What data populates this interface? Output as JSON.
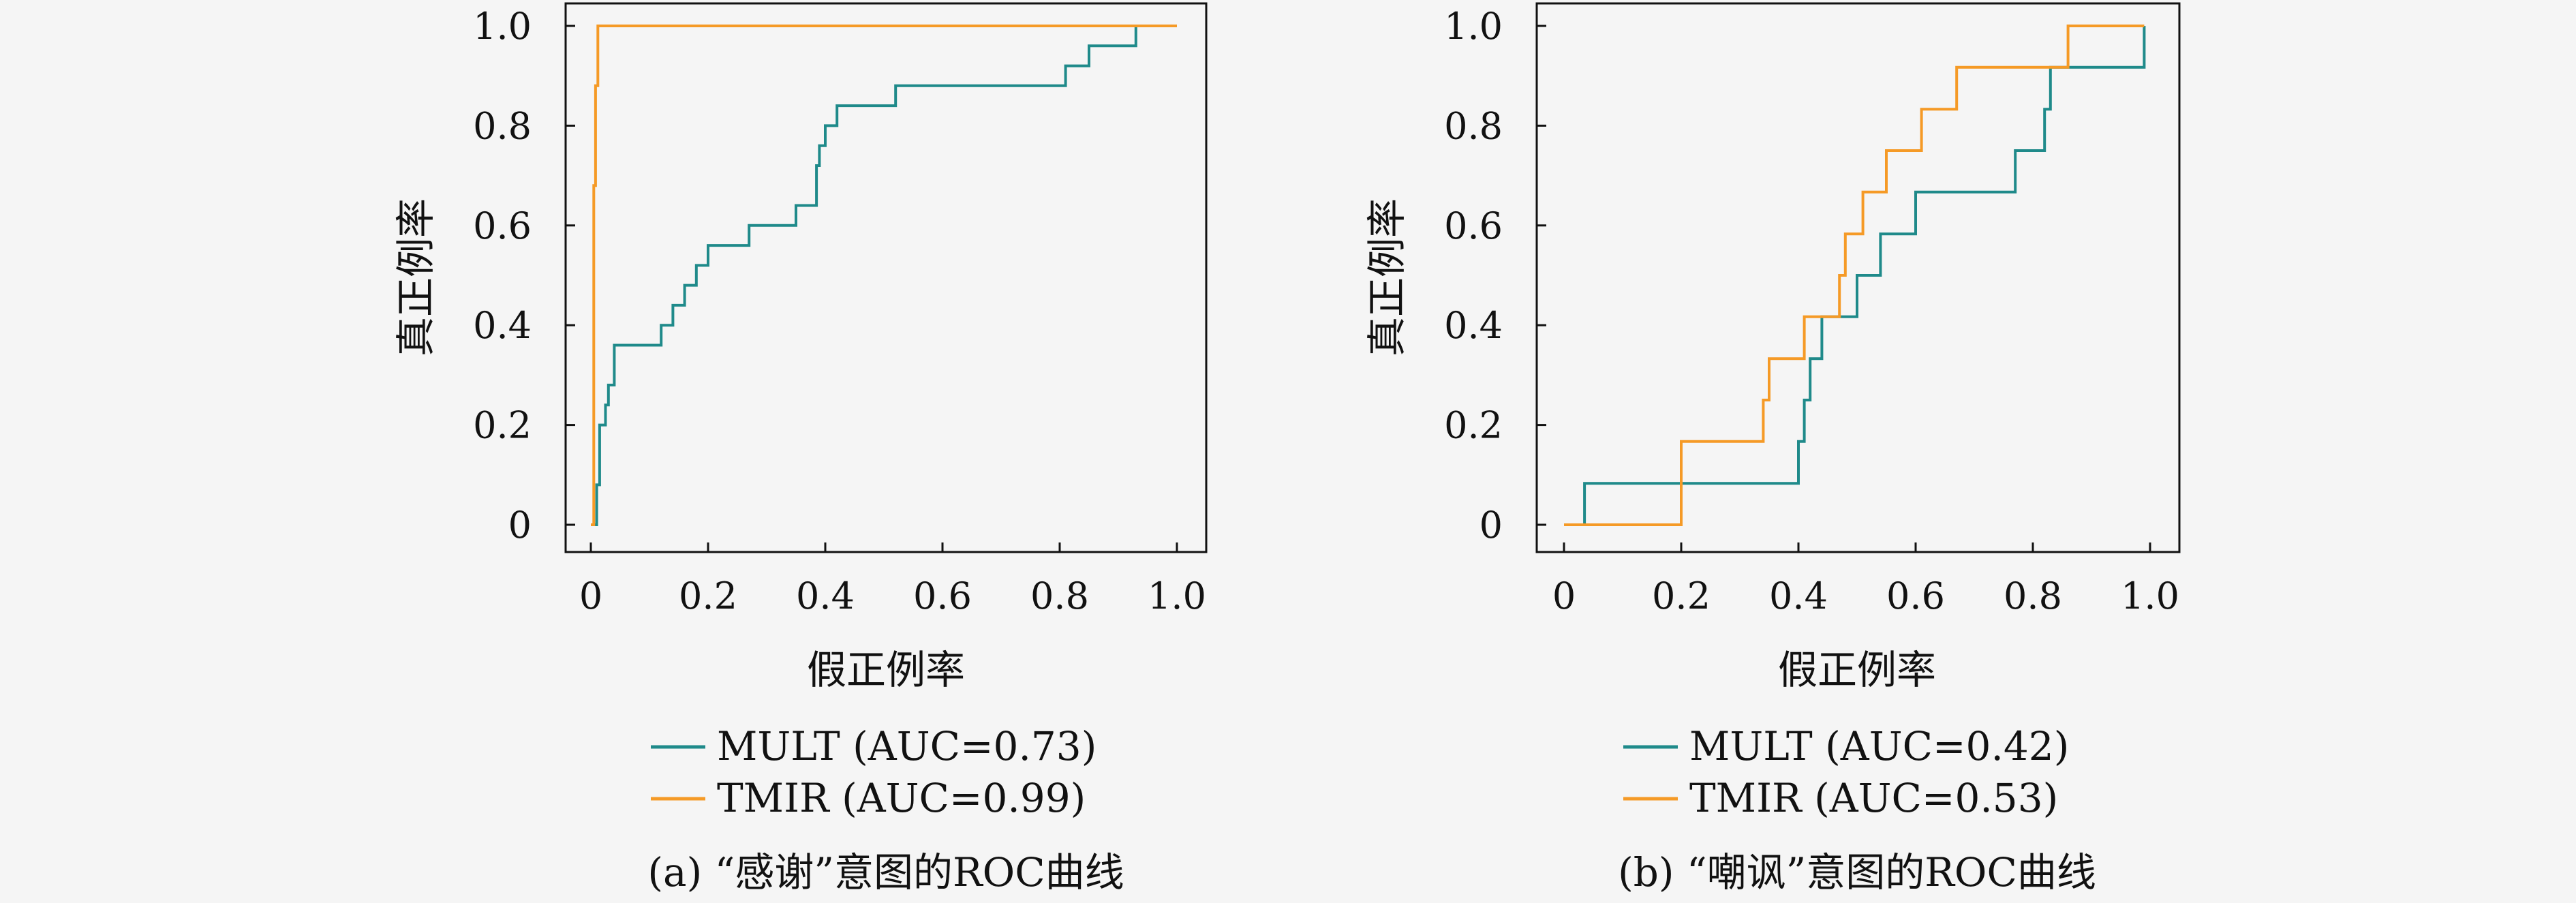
{
  "colors": {
    "mult": "#1f8a8a",
    "tmir": "#f59a26",
    "axis": "#111111",
    "background": "#f5f5f5"
  },
  "chart_data": [
    {
      "type": "line",
      "caption": "(a) “感谢”意图的ROC曲线",
      "xlabel": "假正例率",
      "ylabel": "真正例率",
      "xlim": [
        0,
        1.0
      ],
      "ylim": [
        0,
        1.0
      ],
      "x_ticks": [
        "0",
        "0.2",
        "0.4",
        "0.6",
        "0.8",
        "1.0"
      ],
      "y_ticks": [
        "0",
        "0.2",
        "0.4",
        "0.6",
        "0.8",
        "1.0"
      ],
      "grid": false,
      "legend_position": "below",
      "series": [
        {
          "name": "MULT (AUC=0.73)",
          "color_key": "mult",
          "x": [
            0,
            0.01,
            0.01,
            0.015,
            0.015,
            0.025,
            0.025,
            0.03,
            0.03,
            0.04,
            0.04,
            0.12,
            0.12,
            0.14,
            0.14,
            0.16,
            0.16,
            0.18,
            0.18,
            0.2,
            0.2,
            0.27,
            0.27,
            0.35,
            0.35,
            0.385,
            0.385,
            0.39,
            0.39,
            0.4,
            0.4,
            0.42,
            0.42,
            0.52,
            0.52,
            0.81,
            0.81,
            0.85,
            0.85,
            0.93,
            0.93,
            1.0
          ],
          "y": [
            0,
            0,
            0.08,
            0.08,
            0.2,
            0.2,
            0.24,
            0.24,
            0.28,
            0.28,
            0.36,
            0.36,
            0.4,
            0.4,
            0.44,
            0.44,
            0.48,
            0.48,
            0.52,
            0.52,
            0.56,
            0.56,
            0.6,
            0.6,
            0.64,
            0.64,
            0.72,
            0.72,
            0.76,
            0.76,
            0.8,
            0.8,
            0.84,
            0.84,
            0.88,
            0.88,
            0.92,
            0.92,
            0.96,
            0.96,
            1.0,
            1.0
          ]
        },
        {
          "name": "TMIR (AUC=0.99)",
          "color_key": "tmir",
          "x": [
            0,
            0.005,
            0.005,
            0.008,
            0.008,
            0.012,
            0.012,
            1.0
          ],
          "y": [
            0,
            0,
            0.68,
            0.68,
            0.88,
            0.88,
            1.0,
            1.0
          ]
        }
      ]
    },
    {
      "type": "line",
      "caption": "(b) “嘲讽”意图的ROC曲线",
      "xlabel": "假正例率",
      "ylabel": "真正例率",
      "xlim": [
        0,
        1.0
      ],
      "ylim": [
        0,
        1.0
      ],
      "x_ticks": [
        "0",
        "0.2",
        "0.4",
        "0.6",
        "0.8",
        "1.0"
      ],
      "y_ticks": [
        "0",
        "0.2",
        "0.4",
        "0.6",
        "0.8",
        "1.0"
      ],
      "grid": false,
      "legend_position": "below",
      "series": [
        {
          "name": "MULT (AUC=0.42)",
          "color_key": "mult",
          "x": [
            0,
            0.035,
            0.035,
            0.4,
            0.4,
            0.41,
            0.41,
            0.42,
            0.42,
            0.44,
            0.44,
            0.5,
            0.5,
            0.54,
            0.54,
            0.6,
            0.6,
            0.61,
            0.61,
            0.77,
            0.77,
            0.82,
            0.82,
            0.83,
            0.83,
            0.84,
            0.84,
            0.99,
            0.99
          ],
          "y": [
            0,
            0,
            0.083,
            0.083,
            0.167,
            0.167,
            0.25,
            0.25,
            0.333,
            0.333,
            0.417,
            0.417,
            0.5,
            0.5,
            0.583,
            0.583,
            0.667,
            0.667,
            0.667,
            0.667,
            0.75,
            0.75,
            0.833,
            0.833,
            0.917,
            0.917,
            0.917,
            0.917,
            1.0
          ]
        },
        {
          "name": "TMIR (AUC=0.53)",
          "color_key": "tmir",
          "x": [
            0,
            0.2,
            0.2,
            0.34,
            0.34,
            0.35,
            0.35,
            0.41,
            0.41,
            0.47,
            0.47,
            0.48,
            0.48,
            0.51,
            0.51,
            0.55,
            0.55,
            0.61,
            0.61,
            0.67,
            0.67,
            0.86,
            0.86,
            0.99
          ],
          "y": [
            0,
            0,
            0.167,
            0.167,
            0.25,
            0.25,
            0.333,
            0.333,
            0.417,
            0.417,
            0.5,
            0.5,
            0.583,
            0.583,
            0.667,
            0.667,
            0.75,
            0.75,
            0.833,
            0.833,
            0.917,
            0.917,
            1.0,
            1.0
          ]
        }
      ]
    }
  ]
}
